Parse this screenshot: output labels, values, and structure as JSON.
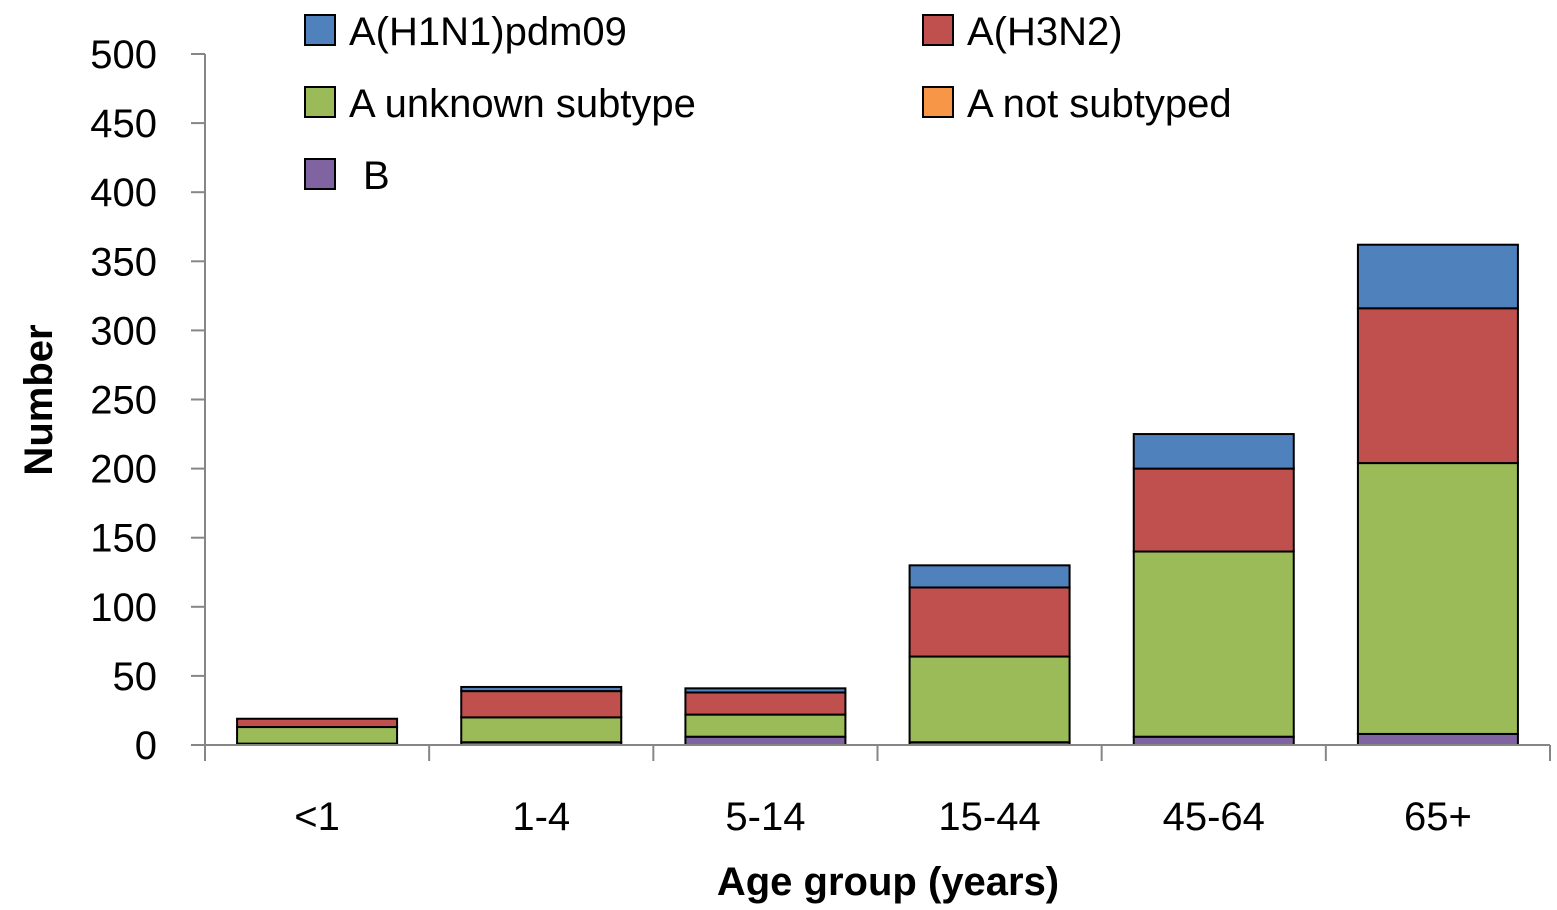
{
  "chart_data": {
    "type": "bar",
    "stacked": true,
    "title": "",
    "xlabel": "Age group (years)",
    "ylabel": "Number",
    "ylim": [
      0,
      500
    ],
    "yticks": [
      0,
      50,
      100,
      150,
      200,
      250,
      300,
      350,
      400,
      450,
      500
    ],
    "grid": false,
    "legend_position": "top",
    "categories": [
      "<1",
      "1-4",
      "5-14",
      "15-44",
      "45-64",
      "65+"
    ],
    "series": [
      {
        "name": "B",
        "color": "#8064A2",
        "values": [
          1,
          2,
          6,
          2,
          6,
          8
        ]
      },
      {
        "name": "A not subtyped",
        "color": "#F79646",
        "values": [
          0,
          0,
          0,
          0,
          0,
          0
        ]
      },
      {
        "name": "A unknown subtype",
        "color": "#9BBB59",
        "values": [
          12,
          18,
          16,
          62,
          134,
          196
        ]
      },
      {
        "name": "A(H3N2)",
        "color": "#C0504D",
        "values": [
          6,
          19,
          16,
          50,
          60,
          112
        ]
      },
      {
        "name": "A(H1N1)pdm09",
        "color": "#4F81BD",
        "values": [
          0,
          3,
          3,
          16,
          25,
          46
        ]
      }
    ],
    "legend_order": [
      "A(H1N1)pdm09",
      "A(H3N2)",
      "A unknown subtype",
      "A not subtyped",
      "B"
    ]
  }
}
